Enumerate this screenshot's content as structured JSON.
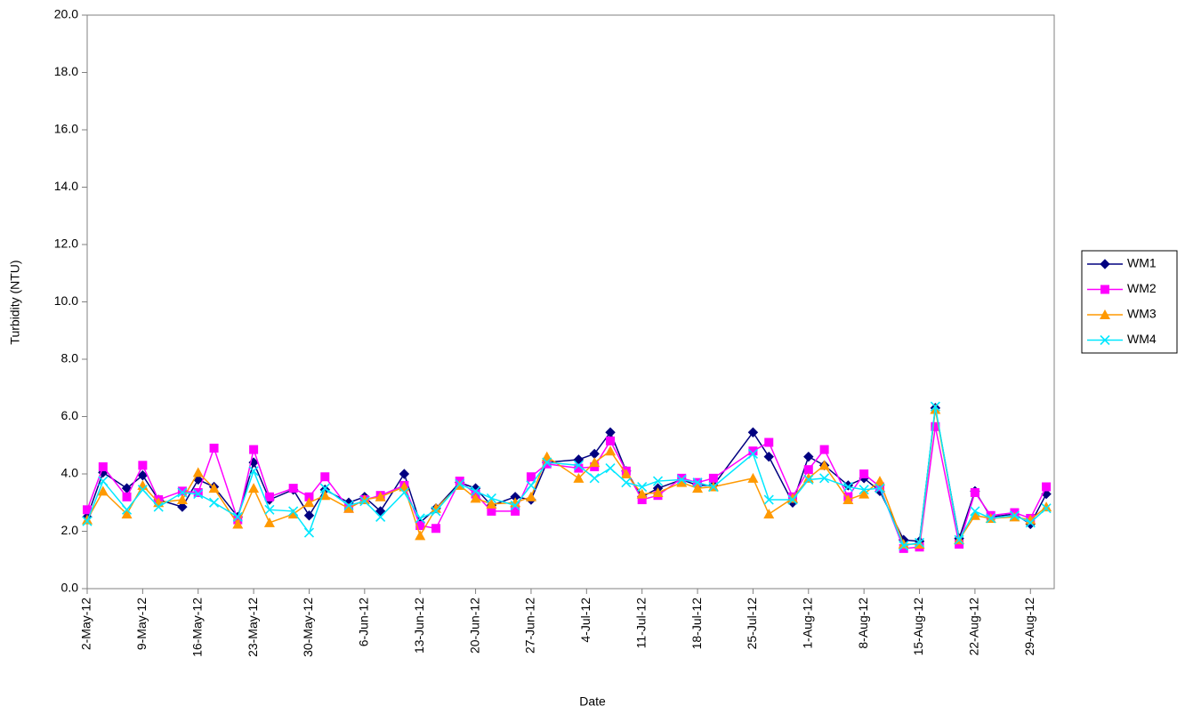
{
  "chart_data": {
    "type": "line",
    "x_label": "Date",
    "y_label": "Turbidity (NTU)",
    "x": [
      "2012-05-02",
      "2012-05-04",
      "2012-05-07",
      "2012-05-09",
      "2012-05-11",
      "2012-05-14",
      "2012-05-16",
      "2012-05-18",
      "2012-05-21",
      "2012-05-23",
      "2012-05-25",
      "2012-05-28",
      "2012-05-30",
      "2012-06-01",
      "2012-06-04",
      "2012-06-06",
      "2012-06-08",
      "2012-06-11",
      "2012-06-13",
      "2012-06-15",
      "2012-06-18",
      "2012-06-20",
      "2012-06-22",
      "2012-06-25",
      "2012-06-27",
      "2012-06-29",
      "2012-07-03",
      "2012-07-05",
      "2012-07-07",
      "2012-07-09",
      "2012-07-11",
      "2012-07-13",
      "2012-07-16",
      "2012-07-18",
      "2012-07-20",
      "2012-07-25",
      "2012-07-27",
      "2012-07-30",
      "2012-08-01",
      "2012-08-03",
      "2012-08-06",
      "2012-08-08",
      "2012-08-10",
      "2012-08-13",
      "2012-08-15",
      "2012-08-17",
      "2012-08-20",
      "2012-08-22",
      "2012-08-24",
      "2012-08-27",
      "2012-08-29",
      "2012-08-31"
    ],
    "series": [
      {
        "name": "WM1",
        "color": "#000080",
        "marker": "diamond",
        "values": [
          2.5,
          4.05,
          3.5,
          3.95,
          3.1,
          2.85,
          3.8,
          3.55,
          2.5,
          4.4,
          3.1,
          3.45,
          2.55,
          3.45,
          3.0,
          3.2,
          2.7,
          4.0,
          2.3,
          2.8,
          3.7,
          3.5,
          2.9,
          3.2,
          3.1,
          4.4,
          4.5,
          4.7,
          5.45,
          4.1,
          3.2,
          3.5,
          3.8,
          3.6,
          3.6,
          5.45,
          4.6,
          3.0,
          4.6,
          4.3,
          3.6,
          3.85,
          3.4,
          1.7,
          1.65,
          6.3,
          1.75,
          3.4,
          2.5,
          2.6,
          2.25,
          3.3
        ]
      },
      {
        "name": "WM2",
        "color": "#ff00ff",
        "marker": "square",
        "values": [
          2.75,
          4.25,
          3.2,
          4.3,
          3.1,
          3.4,
          3.35,
          4.9,
          2.4,
          4.85,
          3.2,
          3.5,
          3.2,
          3.9,
          2.8,
          3.1,
          3.25,
          3.6,
          2.2,
          2.1,
          3.75,
          3.3,
          2.7,
          2.7,
          3.9,
          4.35,
          4.2,
          4.25,
          5.15,
          4.1,
          3.1,
          3.25,
          3.85,
          3.7,
          3.85,
          4.8,
          5.1,
          3.2,
          4.15,
          4.85,
          3.2,
          4.0,
          3.55,
          1.4,
          1.45,
          5.65,
          1.55,
          3.35,
          2.55,
          2.65,
          2.45,
          3.55
        ]
      },
      {
        "name": "WM3",
        "color": "#ff9900",
        "marker": "triangle",
        "values": [
          2.4,
          3.4,
          2.6,
          3.6,
          3.0,
          3.1,
          4.05,
          3.5,
          2.25,
          3.5,
          2.3,
          2.6,
          3.0,
          3.25,
          2.8,
          3.1,
          3.2,
          3.55,
          1.85,
          2.8,
          3.6,
          3.15,
          2.95,
          3.0,
          3.2,
          4.6,
          3.85,
          4.4,
          4.8,
          4.0,
          3.3,
          3.35,
          3.7,
          3.5,
          3.55,
          3.85,
          2.6,
          3.15,
          3.85,
          4.3,
          3.1,
          3.3,
          3.75,
          1.55,
          1.55,
          6.25,
          1.7,
          2.55,
          2.45,
          2.5,
          2.4,
          2.85
        ]
      },
      {
        "name": "WM4",
        "color": "#00e8ff",
        "marker": "x",
        "values": [
          2.35,
          3.75,
          2.75,
          3.45,
          2.85,
          3.35,
          3.3,
          3.0,
          2.5,
          4.1,
          2.75,
          2.7,
          1.95,
          3.5,
          2.9,
          3.05,
          2.5,
          3.35,
          2.45,
          2.7,
          3.65,
          3.4,
          3.15,
          2.9,
          3.6,
          4.4,
          4.3,
          3.85,
          4.2,
          3.7,
          3.55,
          3.75,
          3.8,
          3.7,
          3.55,
          4.7,
          3.1,
          3.1,
          3.8,
          3.85,
          3.55,
          3.45,
          3.5,
          1.5,
          1.6,
          6.35,
          1.7,
          2.7,
          2.45,
          2.55,
          2.3,
          2.8
        ]
      }
    ],
    "xlim": [
      "2012-05-02",
      "2012-09-01"
    ],
    "xticks": [
      {
        "value": "2012-05-02",
        "label": "2-May-12"
      },
      {
        "value": "2012-05-09",
        "label": "9-May-12"
      },
      {
        "value": "2012-05-16",
        "label": "16-May-12"
      },
      {
        "value": "2012-05-23",
        "label": "23-May-12"
      },
      {
        "value": "2012-05-30",
        "label": "30-May-12"
      },
      {
        "value": "2012-06-06",
        "label": "6-Jun-12"
      },
      {
        "value": "2012-06-13",
        "label": "13-Jun-12"
      },
      {
        "value": "2012-06-20",
        "label": "20-Jun-12"
      },
      {
        "value": "2012-06-27",
        "label": "27-Jun-12"
      },
      {
        "value": "2012-07-04",
        "label": "4-Jul-12"
      },
      {
        "value": "2012-07-11",
        "label": "11-Jul-12"
      },
      {
        "value": "2012-07-18",
        "label": "18-Jul-12"
      },
      {
        "value": "2012-07-25",
        "label": "25-Jul-12"
      },
      {
        "value": "2012-08-01",
        "label": "1-Aug-12"
      },
      {
        "value": "2012-08-08",
        "label": "8-Aug-12"
      },
      {
        "value": "2012-08-15",
        "label": "15-Aug-12"
      },
      {
        "value": "2012-08-22",
        "label": "22-Aug-12"
      },
      {
        "value": "2012-08-29",
        "label": "29-Aug-12"
      }
    ],
    "ylim": [
      0,
      20
    ],
    "yticks": [
      {
        "value": 0,
        "label": "0.0"
      },
      {
        "value": 2,
        "label": "2.0"
      },
      {
        "value": 4,
        "label": "4.0"
      },
      {
        "value": 6,
        "label": "6.0"
      },
      {
        "value": 8,
        "label": "8.0"
      },
      {
        "value": 10,
        "label": "10.0"
      },
      {
        "value": 12,
        "label": "12.0"
      },
      {
        "value": 14,
        "label": "14.0"
      },
      {
        "value": 16,
        "label": "16.0"
      },
      {
        "value": 18,
        "label": "18.0"
      },
      {
        "value": 20,
        "label": "20.0"
      }
    ],
    "grid": false,
    "legend": "right"
  }
}
